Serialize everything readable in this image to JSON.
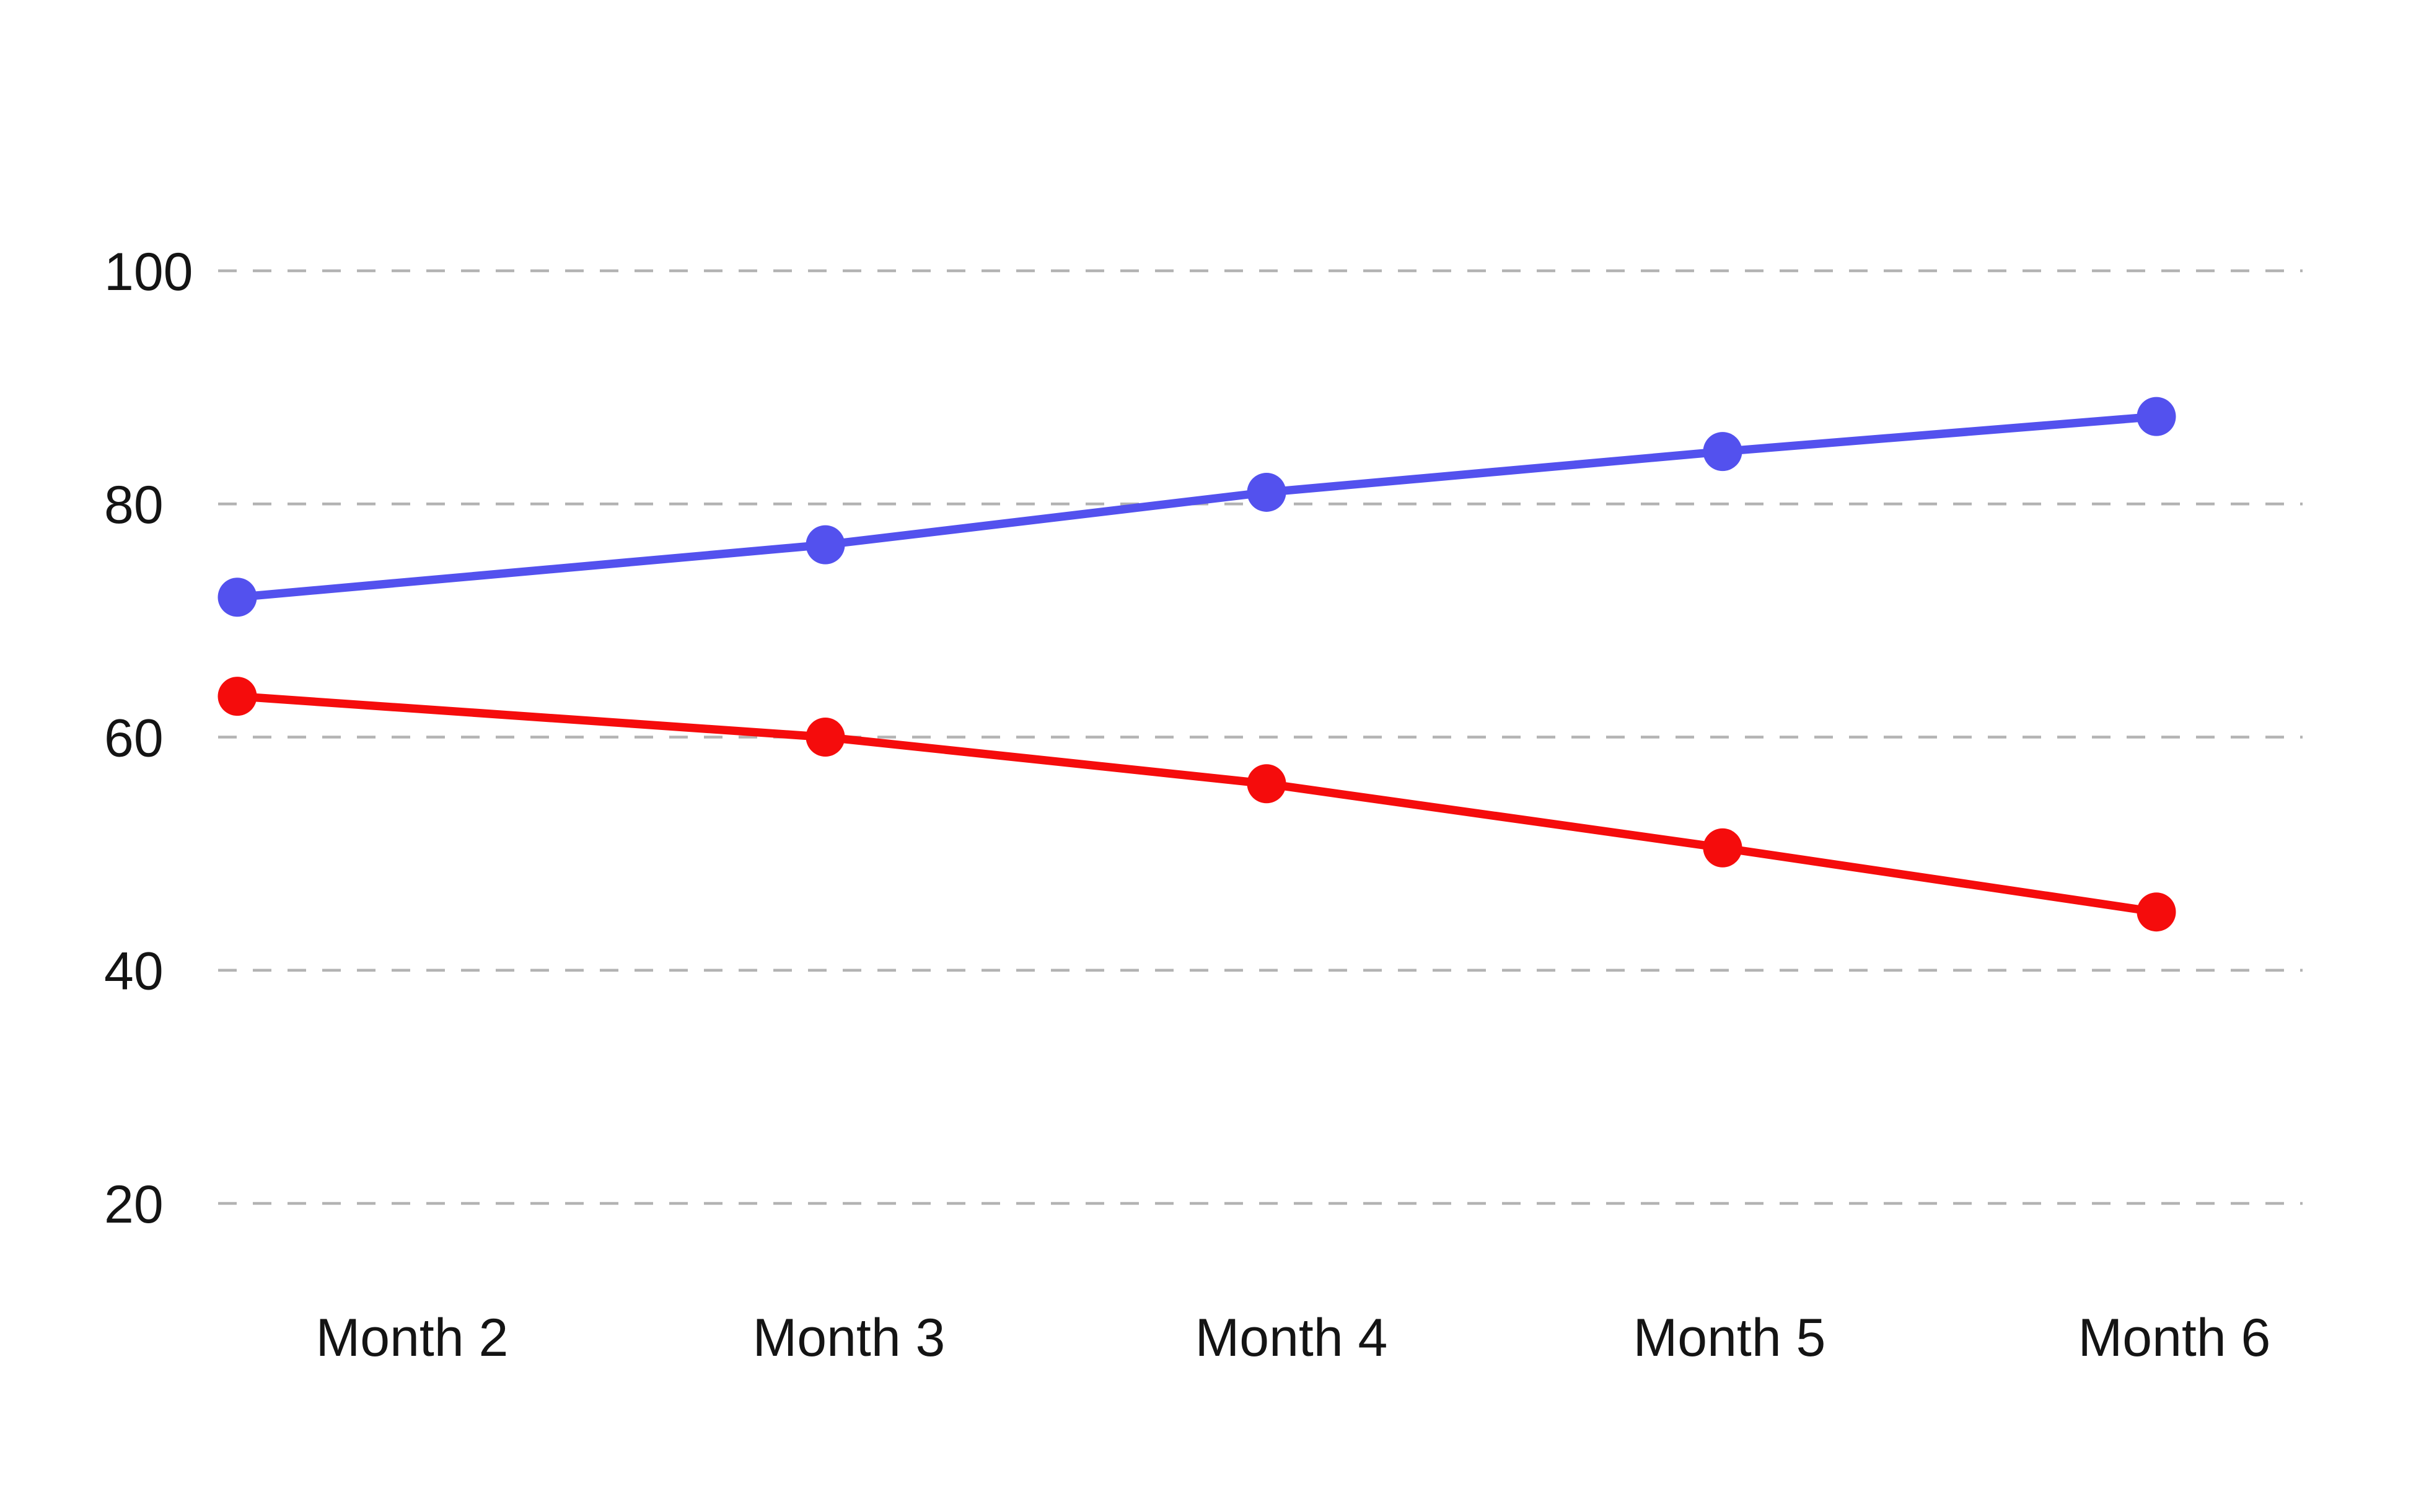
{
  "page": {
    "background": "#ffffff"
  },
  "chart_data": {
    "type": "line",
    "categories": [
      "Month 2",
      "Month 3",
      "Month 4",
      "Month 5",
      "Month 6"
    ],
    "series": [
      {
        "name": "blue",
        "color": "#5351ee",
        "values": [
          72,
          76.5,
          81,
          84.5,
          87.5
        ]
      },
      {
        "name": "red",
        "color": "#f50c0c",
        "values": [
          63.5,
          60,
          56,
          50.5,
          45
        ]
      }
    ],
    "y_ticks": [
      100,
      80,
      60,
      40,
      20
    ],
    "ylim": [
      20,
      100
    ],
    "xlabel": "",
    "ylabel": "",
    "title": "",
    "grid": {
      "horizontal": true,
      "style": "dashed",
      "color": "#b3b3b3"
    },
    "legend_position": "none",
    "tick_text_color": "#141414",
    "marker_shape": "circle"
  }
}
